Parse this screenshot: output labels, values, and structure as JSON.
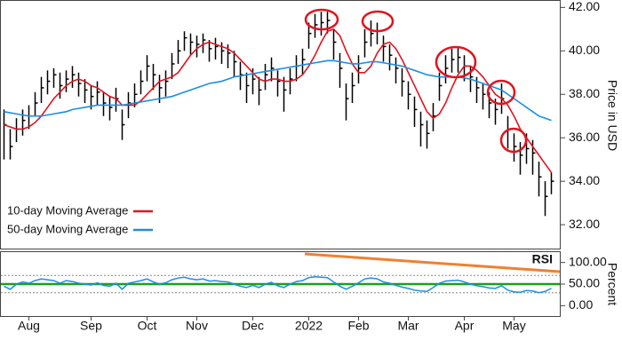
{
  "chart_data": [
    {
      "type": "hlc",
      "categories": [
        null,
        null,
        null,
        null,
        "Aug",
        null,
        null,
        null,
        null,
        null,
        null,
        null,
        null,
        null,
        "Sep",
        null,
        null,
        null,
        null,
        null,
        null,
        null,
        null,
        "Oct",
        null,
        null,
        null,
        null,
        null,
        null,
        null,
        "Nov",
        null,
        null,
        null,
        null,
        null,
        null,
        null,
        null,
        "Dec",
        null,
        null,
        null,
        null,
        null,
        null,
        null,
        null,
        "2022",
        null,
        null,
        null,
        null,
        null,
        null,
        null,
        "Feb",
        null,
        null,
        null,
        null,
        null,
        null,
        null,
        "Mar",
        null,
        null,
        null,
        null,
        null,
        null,
        null,
        null,
        "Apr",
        null,
        null,
        null,
        null,
        null,
        null,
        null,
        "May",
        null,
        null,
        null,
        null,
        null,
        null
      ],
      "high": [
        37.3,
        36.4,
        36.9,
        37.3,
        37.5,
        38.1,
        38.8,
        39.1,
        39.2,
        39.0,
        39.1,
        39.3,
        39.0,
        38.7,
        38.4,
        38.6,
        38.1,
        37.9,
        38.3,
        37.3,
        38.1,
        38.5,
        39.1,
        39.8,
        39.4,
        38.9,
        39.1,
        39.9,
        40.5,
        40.9,
        40.8,
        40.7,
        40.8,
        40.5,
        40.6,
        40.4,
        40.3,
        40.0,
        39.5,
        39.0,
        39.2,
        38.8,
        39.4,
        39.7,
        39.1,
        38.8,
        39.2,
        39.8,
        40.1,
        41.3,
        41.7,
        41.8,
        41.8,
        41.0,
        39.9,
        38.5,
        39.0,
        39.8,
        41.0,
        41.4,
        41.3,
        40.7,
        40.3,
        39.7,
        39.2,
        38.6,
        37.9,
        37.2,
        36.8,
        37.6,
        39.0,
        39.8,
        40.1,
        40.2,
        39.8,
        39.3,
        38.8,
        38.5,
        38.1,
        37.8,
        38.5,
        37.0,
        36.2,
        35.8,
        36.2,
        35.9,
        34.9,
        34.0,
        34.4
      ],
      "low": [
        35.0,
        35.0,
        35.8,
        36.1,
        36.4,
        37.0,
        37.6,
        38.0,
        38.3,
        37.8,
        38.1,
        38.3,
        37.9,
        37.6,
        37.3,
        37.5,
        37.0,
        36.8,
        37.2,
        35.9,
        36.9,
        37.4,
        38.0,
        38.6,
        38.2,
        37.6,
        37.9,
        38.7,
        39.4,
        40.0,
        39.8,
        39.7,
        39.9,
        39.5,
        39.6,
        39.4,
        39.2,
        38.8,
        38.2,
        37.6,
        38.0,
        37.5,
        38.2,
        38.6,
        37.9,
        37.2,
        38.0,
        38.6,
        38.9,
        40.1,
        40.6,
        40.7,
        40.8,
        39.6,
        38.3,
        36.8,
        37.6,
        38.5,
        39.7,
        40.2,
        40.3,
        39.5,
        39.1,
        38.5,
        37.9,
        37.3,
        36.5,
        35.6,
        35.5,
        36.3,
        37.7,
        38.5,
        39.0,
        39.0,
        38.6,
        38.1,
        37.6,
        37.3,
        36.9,
        36.6,
        37.1,
        35.5,
        34.9,
        34.3,
        34.8,
        34.3,
        33.3,
        32.4,
        33.4
      ],
      "close": [
        36.6,
        35.6,
        36.4,
        36.8,
        37.0,
        37.6,
        38.3,
        38.6,
        38.9,
        38.4,
        38.7,
        38.9,
        38.5,
        38.2,
        37.9,
        38.1,
        37.6,
        37.4,
        37.8,
        36.6,
        37.6,
        38.0,
        38.6,
        39.3,
        38.9,
        38.3,
        38.6,
        39.4,
        40.0,
        40.6,
        40.4,
        40.3,
        40.5,
        40.1,
        40.2,
        40.0,
        39.9,
        39.5,
        38.9,
        38.4,
        38.7,
        38.2,
        38.9,
        39.2,
        38.6,
        38.2,
        38.7,
        39.3,
        39.6,
        40.8,
        41.2,
        41.3,
        41.4,
        40.4,
        39.2,
        37.8,
        38.4,
        39.2,
        40.4,
        40.8,
        40.9,
        40.2,
        39.8,
        39.2,
        38.6,
        38.0,
        37.3,
        36.6,
        36.2,
        37.0,
        38.4,
        39.2,
        39.6,
        39.7,
        39.3,
        38.8,
        38.3,
        38.0,
        37.6,
        37.3,
        37.8,
        36.4,
        35.6,
        35.2,
        35.5,
        35.3,
        34.2,
        33.3,
        34.0
      ],
      "color": "#000000",
      "series": [
        {
          "name": "10-day Moving Average",
          "color": "#e0141e",
          "values": [
            36.6,
            36.5,
            36.4,
            36.4,
            36.5,
            36.7,
            37.0,
            37.4,
            37.8,
            38.1,
            38.4,
            38.6,
            38.7,
            38.6,
            38.4,
            38.3,
            38.1,
            37.9,
            37.8,
            37.5,
            37.5,
            37.5,
            37.7,
            38.0,
            38.3,
            38.6,
            38.7,
            38.8,
            39.0,
            39.4,
            39.8,
            40.1,
            40.3,
            40.4,
            40.3,
            40.2,
            40.1,
            39.9,
            39.6,
            39.3,
            39.0,
            38.7,
            38.6,
            38.7,
            38.7,
            38.6,
            38.6,
            38.7,
            38.9,
            39.3,
            39.8,
            40.4,
            40.9,
            41.0,
            40.7,
            40.0,
            39.4,
            39.0,
            39.0,
            39.3,
            39.9,
            40.3,
            40.4,
            40.1,
            39.6,
            39.0,
            38.4,
            37.8,
            37.2,
            36.9,
            37.1,
            37.6,
            38.3,
            38.9,
            39.3,
            39.3,
            39.1,
            38.8,
            38.4,
            38.0,
            37.8,
            37.5,
            37.0,
            36.4,
            36.0,
            35.6,
            35.2,
            34.8,
            34.4
          ]
        },
        {
          "name": "50-day Moving Average",
          "color": "#1a8fe3",
          "values": [
            37.2,
            37.15,
            37.1,
            37.05,
            37.0,
            37.0,
            37.0,
            37.05,
            37.1,
            37.15,
            37.2,
            37.3,
            37.35,
            37.4,
            37.45,
            37.5,
            37.5,
            37.5,
            37.5,
            37.5,
            37.55,
            37.6,
            37.65,
            37.7,
            37.75,
            37.8,
            37.85,
            37.9,
            38.0,
            38.1,
            38.2,
            38.3,
            38.4,
            38.5,
            38.55,
            38.6,
            38.7,
            38.8,
            38.85,
            38.9,
            38.95,
            39.0,
            39.05,
            39.1,
            39.15,
            39.2,
            39.25,
            39.3,
            39.35,
            39.4,
            39.45,
            39.5,
            39.55,
            39.55,
            39.5,
            39.45,
            39.4,
            39.4,
            39.45,
            39.5,
            39.5,
            39.45,
            39.4,
            39.35,
            39.3,
            39.2,
            39.1,
            39.0,
            38.9,
            38.85,
            38.8,
            38.8,
            38.8,
            38.8,
            38.75,
            38.7,
            38.6,
            38.5,
            38.4,
            38.3,
            38.2,
            38.0,
            37.8,
            37.6,
            37.4,
            37.2,
            37.0,
            36.9,
            36.8
          ]
        }
      ],
      "ylim": [
        30.9,
        42.3
      ],
      "yticks": [
        {
          "value": 42,
          "label": "42.00"
        },
        {
          "value": 40,
          "label": "40.00"
        },
        {
          "value": 38,
          "label": "38.00"
        },
        {
          "value": 36,
          "label": "36.00"
        },
        {
          "value": 34,
          "label": "34.00"
        },
        {
          "value": 32,
          "label": "32.00"
        }
      ],
      "y_axis_label": "Price in USD",
      "legend": "lower-left"
    },
    {
      "type": "line",
      "title": "RSI",
      "values": [
        45,
        38,
        50,
        55,
        52,
        58,
        62,
        60,
        58,
        52,
        58,
        56,
        52,
        50,
        48,
        53,
        47,
        45,
        52,
        38,
        52,
        55,
        58,
        62,
        55,
        50,
        53,
        60,
        64,
        66,
        62,
        60,
        62,
        57,
        58,
        56,
        55,
        50,
        45,
        42,
        47,
        42,
        50,
        54,
        46,
        42,
        50,
        56,
        58,
        65,
        67,
        66,
        65,
        55,
        45,
        38,
        45,
        53,
        62,
        64,
        62,
        55,
        52,
        47,
        43,
        40,
        36,
        34,
        33,
        42,
        52,
        57,
        58,
        59,
        55,
        50,
        46,
        44,
        41,
        40,
        46,
        36,
        32,
        31,
        35,
        34,
        30,
        33,
        40
      ],
      "color": "#1a8fe3",
      "midline": 50,
      "midline_color": "#1e9e1e",
      "reference_lines": [
        70,
        30
      ],
      "ylim": [
        -24,
        124
      ],
      "yticks": [
        {
          "value": 100,
          "label": "100.00"
        },
        {
          "value": 50,
          "label": "50.00"
        },
        {
          "value": 0,
          "label": "0.00"
        }
      ],
      "y_axis_label": "Percent"
    }
  ]
}
